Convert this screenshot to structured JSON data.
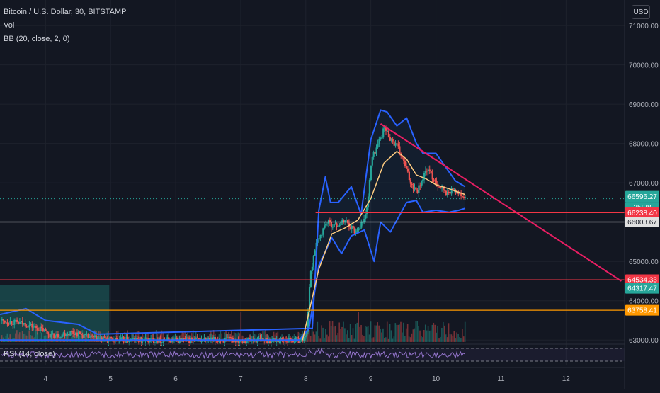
{
  "legend": {
    "title": "Bitcoin / U.S. Dollar, 30, BITSTAMP",
    "vol": "Vol",
    "bb": "BB (20, close, 2, 0)",
    "rsi": "RSI (14, close)"
  },
  "currency_button": "USD",
  "colors": {
    "background": "#131722",
    "grid": "#1e222d",
    "up": "#26a69a",
    "down": "#ef5350",
    "bb_band": "#2962ff",
    "bb_basis": "#ffcc80",
    "trendline": "#e91e63",
    "white_line": "#ffffff",
    "red_line": "#f23645",
    "orange_line": "#ff9800",
    "rsi_line": "#9575cd",
    "text": "#b2b5be"
  },
  "chart_data": {
    "type": "candlestick",
    "x_ticks": [
      "4",
      "5",
      "6",
      "7",
      "8",
      "9",
      "10",
      "11",
      "12"
    ],
    "y_ticks": [
      63000,
      64000,
      65000,
      66000,
      67000,
      68000,
      69000,
      70000,
      71000
    ],
    "y_tick_labels": [
      "63000.00",
      "64000.00",
      "65000.00",
      "66000.00",
      "67000.00",
      "68000.00",
      "69000.00",
      "70000.00",
      "71000.00"
    ],
    "ylim": [
      62950,
      71650
    ],
    "xlim": [
      3.3,
      12.9
    ],
    "price_path": [
      [
        3.3,
        63500
      ],
      [
        3.7,
        63400
      ],
      [
        3.95,
        63250
      ],
      [
        4.1,
        63100
      ],
      [
        4.4,
        63200
      ],
      [
        4.7,
        63050
      ],
      [
        5.0,
        63000
      ],
      [
        7.9,
        63000
      ],
      [
        8.0,
        63100
      ],
      [
        8.05,
        64500
      ],
      [
        8.12,
        65300
      ],
      [
        8.2,
        65600
      ],
      [
        8.3,
        66000
      ],
      [
        8.45,
        65900
      ],
      [
        8.6,
        66050
      ],
      [
        8.75,
        65750
      ],
      [
        8.9,
        66100
      ],
      [
        8.95,
        66700
      ],
      [
        9.0,
        67600
      ],
      [
        9.1,
        68000
      ],
      [
        9.2,
        68400
      ],
      [
        9.3,
        68100
      ],
      [
        9.4,
        67900
      ],
      [
        9.5,
        67500
      ],
      [
        9.6,
        67000
      ],
      [
        9.7,
        66800
      ],
      [
        9.85,
        67350
      ],
      [
        9.95,
        67100
      ],
      [
        10.05,
        66900
      ],
      [
        10.15,
        66700
      ],
      [
        10.25,
        66850
      ],
      [
        10.35,
        66700
      ],
      [
        10.45,
        66600
      ]
    ],
    "bb_upper": [
      [
        3.3,
        63650
      ],
      [
        3.7,
        63800
      ],
      [
        4.0,
        63500
      ],
      [
        4.5,
        63400
      ],
      [
        4.8,
        63150
      ],
      [
        8.1,
        63300
      ],
      [
        8.2,
        66300
      ],
      [
        8.3,
        67150
      ],
      [
        8.38,
        66500
      ],
      [
        8.5,
        66500
      ],
      [
        8.7,
        66900
      ],
      [
        8.85,
        66200
      ],
      [
        9.0,
        68100
      ],
      [
        9.15,
        68850
      ],
      [
        9.25,
        68800
      ],
      [
        9.4,
        68450
      ],
      [
        9.55,
        68650
      ],
      [
        9.7,
        68000
      ],
      [
        9.8,
        67750
      ],
      [
        10.0,
        67750
      ],
      [
        10.15,
        67400
      ],
      [
        10.3,
        67050
      ],
      [
        10.45,
        66900
      ]
    ],
    "bb_lower": [
      [
        3.3,
        63000
      ],
      [
        5.0,
        63000
      ],
      [
        7.9,
        63000
      ],
      [
        8.05,
        63300
      ],
      [
        8.2,
        64900
      ],
      [
        8.4,
        65600
      ],
      [
        8.55,
        65200
      ],
      [
        8.7,
        65650
      ],
      [
        8.9,
        65800
      ],
      [
        9.05,
        65000
      ],
      [
        9.15,
        66000
      ],
      [
        9.3,
        65750
      ],
      [
        9.55,
        66500
      ],
      [
        9.7,
        66550
      ],
      [
        9.8,
        66250
      ],
      [
        10.0,
        66300
      ],
      [
        10.2,
        66250
      ],
      [
        10.35,
        66300
      ],
      [
        10.45,
        66350
      ]
    ],
    "bb_basis": [
      [
        7.95,
        63000
      ],
      [
        8.2,
        64800
      ],
      [
        8.4,
        65700
      ],
      [
        8.6,
        65850
      ],
      [
        8.8,
        66050
      ],
      [
        9.0,
        66600
      ],
      [
        9.2,
        67500
      ],
      [
        9.4,
        67800
      ],
      [
        9.55,
        67600
      ],
      [
        9.7,
        67200
      ],
      [
        9.85,
        67100
      ],
      [
        10.0,
        66950
      ],
      [
        10.2,
        66850
      ],
      [
        10.45,
        66700
      ]
    ],
    "trendline": [
      [
        9.15,
        68500
      ],
      [
        12.85,
        64500
      ]
    ],
    "horizontal_levels": [
      {
        "price": 66238.4,
        "color": "red_line",
        "from_x": 8.15,
        "label": "66238.40"
      },
      {
        "price": 66003.67,
        "color": "white_line",
        "from_x": 3.3,
        "label": "66003.67"
      },
      {
        "price": 64534.33,
        "color": "red_line",
        "from_x": 3.3,
        "label": "64534.33"
      },
      {
        "price": 63758.41,
        "color": "orange_line",
        "from_x": 3.3,
        "label": "63758.41"
      }
    ],
    "last_price": {
      "price": 66596.27,
      "label": "66596.27",
      "countdown": "25:28"
    },
    "trendline_label": {
      "price": 64317.47,
      "label": "64317.47"
    },
    "range_box": {
      "x0": 3.3,
      "x1": 4.98,
      "y0": 62950,
      "y1": 64400
    }
  }
}
